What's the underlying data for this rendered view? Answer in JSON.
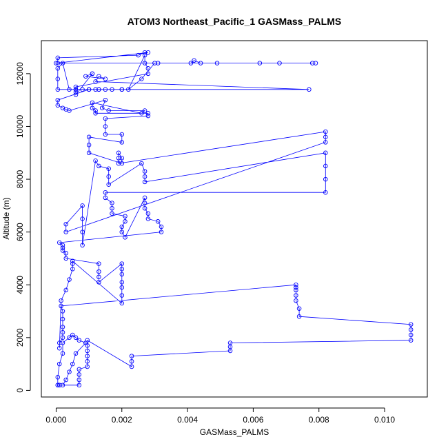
{
  "chart_data": {
    "type": "line",
    "title": "ATOM3 Northeast_Pacific_1 GASMass_PALMS",
    "xlabel": "GASMass_PALMS",
    "ylabel": "Altitude (m)",
    "xlim": [
      -0.00045,
      0.0113
    ],
    "ylim": [
      -250,
      13250
    ],
    "xticks": [
      0.0,
      0.002,
      0.004,
      0.006,
      0.008,
      0.01
    ],
    "xtick_labels": [
      "0.000",
      "0.002",
      "0.004",
      "0.006",
      "0.008",
      "0.010"
    ],
    "yticks": [
      0,
      2000,
      4000,
      6000,
      8000,
      10000,
      12000
    ],
    "ytick_labels": [
      "0",
      "2000",
      "4000",
      "6000",
      "8000",
      "10000",
      "12000"
    ],
    "grid": false,
    "legend": "none",
    "color": "#0000ff",
    "marker": "open-circle",
    "series": [
      {
        "x": [
          5e-05,
          5e-05,
          0.0001,
          0.0002,
          0.0002,
          0.0004,
          0.0005,
          0.0006,
          0.0007,
          0.0009,
          0.0006,
          0.0005,
          0.0004,
          0.0003,
          0.0002,
          0.0001,
          5e-05,
          0.0001,
          0.0007,
          0.0007,
          0.0007,
          0.0007,
          0.00095,
          0.00095,
          0.00095,
          0.00095,
          0.00095,
          0.00095,
          0.0023,
          0.0023,
          0.0023,
          0.0053,
          0.0053,
          0.0053,
          0.0108,
          0.0108,
          0.0108,
          0.0108,
          0.0074,
          0.0074,
          0.0073,
          0.0073,
          0.0073,
          0.0073,
          0.0073,
          0.00015,
          0.0002,
          0.0002,
          0.0002,
          0.0002,
          0.0002,
          0.0001,
          0.0001,
          0.00015,
          0.0003,
          0.0004,
          0.0005,
          0.0005,
          0.0005,
          0.002,
          0.002,
          0.002,
          0.002,
          0.002,
          0.002,
          0.002,
          0.0013,
          0.0013,
          0.0013,
          0.0013,
          0.0003,
          0.0003,
          0.0002,
          0.0002,
          0.0002,
          0.0001,
          0.0032,
          0.0032,
          0.0031,
          0.0028,
          0.0028,
          0.0027,
          0.0027,
          0.0027,
          0.0021,
          0.002,
          0.002,
          0.0021,
          0.0021,
          0.0017,
          0.0017,
          0.0017,
          0.0015,
          0.0015,
          0.0082,
          0.0082,
          0.0082,
          0.0082,
          0.0027,
          0.0027,
          0.0027,
          0.0026,
          0.0016,
          0.0016,
          0.0016,
          0.0013,
          0.0012,
          0.0008,
          0.0008,
          0.0008,
          0.0008,
          0.0003,
          0.0003,
          0.0082,
          0.0082,
          0.0082,
          0.0019,
          0.0019,
          0.0019,
          0.002,
          0.002,
          0.001,
          0.001,
          0.001,
          0.002,
          0.002,
          0.0015,
          0.0015,
          0.0015,
          0.0028,
          0.0028,
          0.0012,
          0.0012,
          0.0011,
          0.0011,
          0.0026,
          0.0027,
          0.0016,
          0.0014,
          0.0015,
          0.0004,
          0.0003,
          0.0002,
          5e-05,
          5e-05,
          0.001,
          0.0012,
          0.0013,
          0.0015,
          0.0017,
          0.002,
          5e-05,
          5e-05,
          5e-05,
          0.0002,
          0.0004,
          0.0006,
          0.0008,
          0.001,
          0.0013,
          0.002,
          0.0077,
          0.0012,
          0.0013,
          0.0015,
          0.0009,
          0.0011,
          0.0011,
          0.0006,
          0.0006,
          0.0006,
          0.0006,
          0.0028,
          0.0028,
          0.0027,
          0.0027,
          0.0022,
          0.0026,
          0.003,
          0.0031,
          0.0041,
          0.0042,
          0.0044,
          0.0049,
          0.0062,
          0.0068,
          0.0079,
          0.0078,
          0.0,
          0.0028,
          0.0027,
          0.0025,
          5e-05,
          5e-05
        ],
        "y": [
          200,
          500,
          1000,
          1400,
          1800,
          2000,
          2100,
          2000,
          1900,
          1800,
          1400,
          1000,
          700,
          400,
          200,
          200,
          200,
          200,
          200,
          400,
          600,
          800,
          900,
          1100,
          1300,
          1500,
          1700,
          1900,
          900,
          1100,
          1300,
          1500,
          1650,
          1800,
          1900,
          2100,
          2300,
          2500,
          2800,
          3100,
          3400,
          3600,
          3800,
          3900,
          4000,
          3200,
          3000,
          2700,
          2400,
          2200,
          2000,
          1800,
          1600,
          3400,
          3800,
          4200,
          4600,
          4800,
          4900,
          3300,
          3600,
          3900,
          4100,
          4400,
          4600,
          4800,
          4100,
          4300,
          4500,
          4800,
          5000,
          5200,
          5300,
          5400,
          5500,
          5600,
          6000,
          6200,
          6400,
          6500,
          6700,
          6900,
          7100,
          7300,
          5800,
          6000,
          6200,
          6400,
          6600,
          6700,
          6900,
          7100,
          7300,
          7500,
          7500,
          8000,
          8500,
          9000,
          7900,
          8100,
          8300,
          8600,
          7800,
          8100,
          8400,
          8500,
          8700,
          5500,
          6000,
          6500,
          7000,
          6300,
          6000,
          9400,
          9600,
          9800,
          8600,
          8800,
          9000,
          8800,
          8600,
          9000,
          9300,
          9600,
          9400,
          9700,
          9700,
          10000,
          10300,
          10400,
          10500,
          10500,
          10600,
          10700,
          10900,
          10500,
          10600,
          10600,
          10700,
          11000,
          10600,
          10650,
          10700,
          10800,
          11000,
          11400,
          11400,
          11400,
          11400,
          11400,
          11400,
          11400,
          11800,
          12200,
          12400,
          11400,
          11400,
          11400,
          11400,
          11400,
          11400,
          11400,
          11700,
          11900,
          11800,
          11900,
          12000,
          12000,
          11200,
          11300,
          11400,
          11500,
          12000,
          12200,
          12400,
          12700,
          11400,
          11800,
          12400,
          12400,
          12400,
          12500,
          12400,
          12400,
          12400,
          12400,
          12400,
          12400,
          12400,
          12800,
          12800,
          12700,
          12600,
          12400
        ]
      }
    ]
  }
}
